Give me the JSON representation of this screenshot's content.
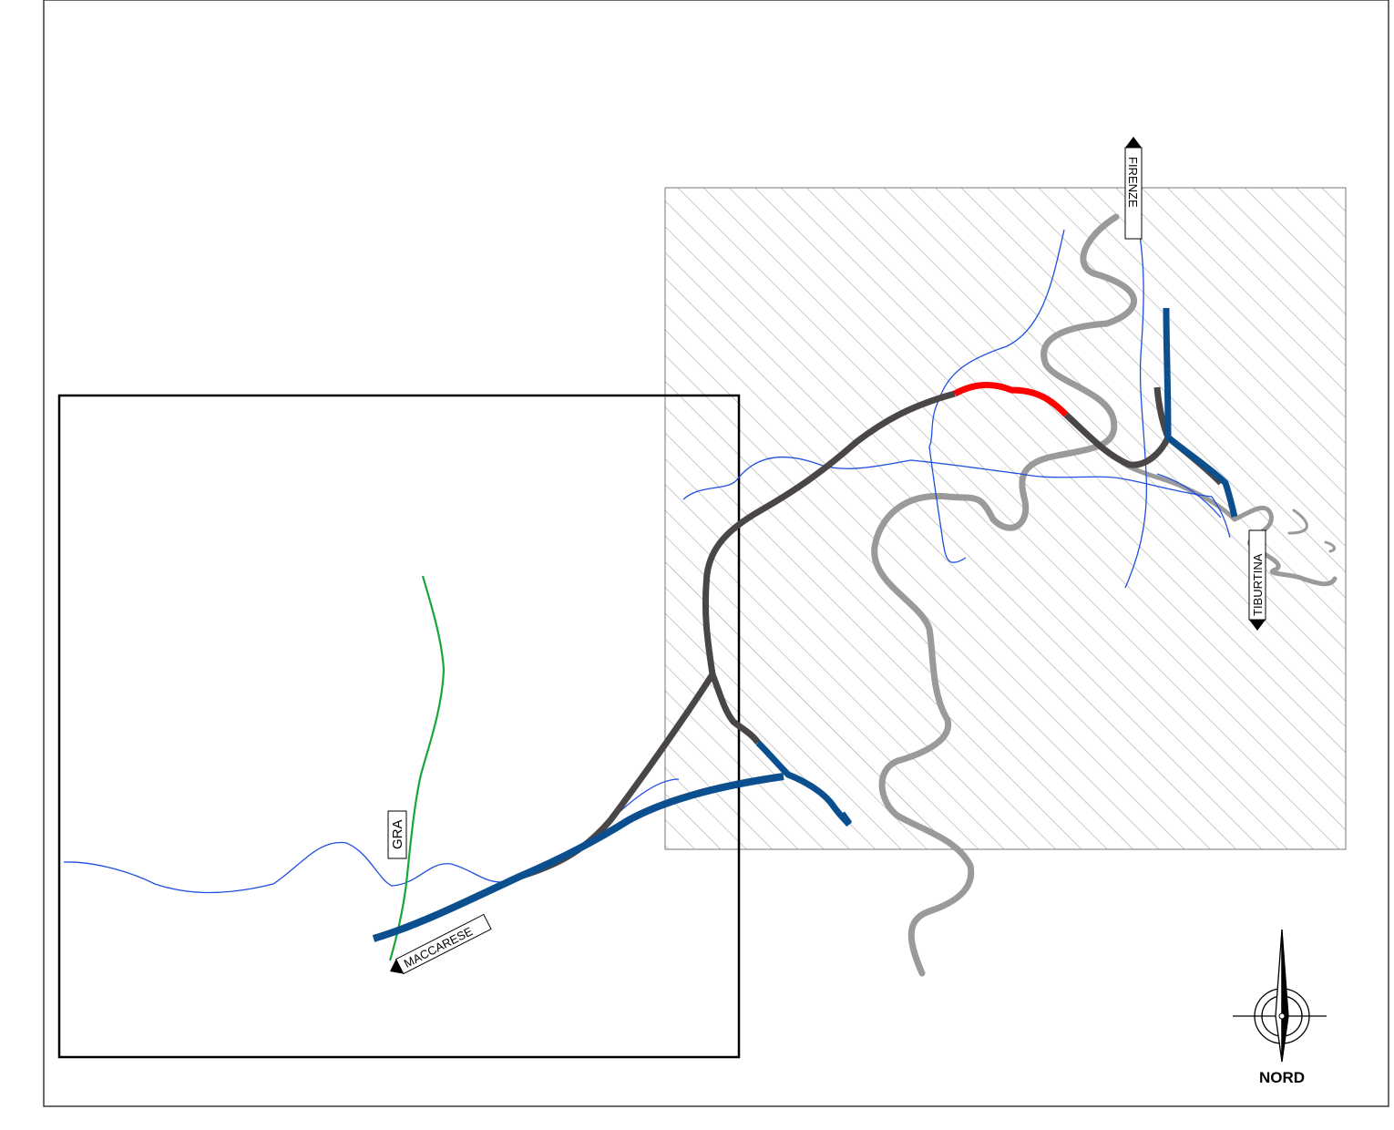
{
  "labels": {
    "firenze": "FIRENZE",
    "tiburtina": "TIBURTINA",
    "maccarese": "MACCARESE",
    "gra": "GRA"
  },
  "compass": {
    "label": "NORD",
    "icon": "north-arrow-icon"
  },
  "colors": {
    "frame": "#3a3a3a",
    "hatch": "#a8a8a8",
    "river": "#9a9a9a",
    "railway_existing": "#4a4646",
    "railway_blue": "#0b4f8f",
    "railway_new": "#ff0000",
    "road_blue": "#1f4fe0",
    "gra_green": "#14a83a"
  }
}
